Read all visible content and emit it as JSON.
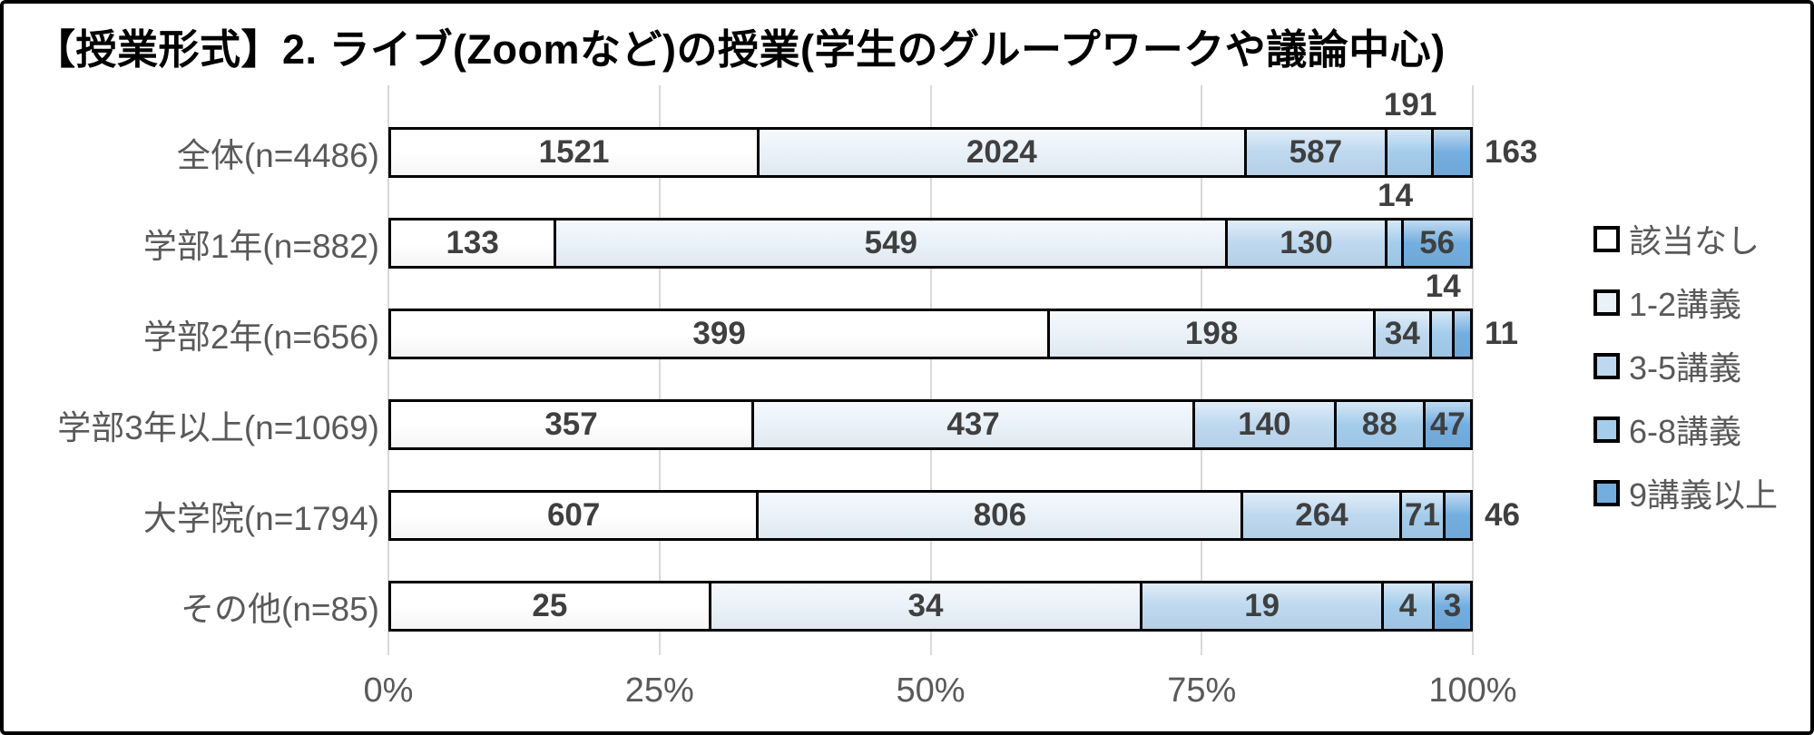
{
  "title": "【授業形式】2. ライブ(Zoomなど)の授業(学生のグループワークや議論中心)",
  "chart_data": {
    "type": "bar",
    "variant": "100pct-stacked-horizontal",
    "title": "【授業形式】2. ライブ(Zoomなど)の授業(学生のグループワークや議論中心)",
    "categories": [
      "全体(n=4486)",
      "学部1年(n=882)",
      "学部2年(n=656)",
      "学部3年以上(n=1069)",
      "大学院(n=1794)",
      "その他(n=85)"
    ],
    "category_totals": [
      4486,
      882,
      656,
      1069,
      1794,
      85
    ],
    "series": [
      {
        "name": "該当なし",
        "color": "#FFFFFF",
        "values": [
          1521,
          133,
          399,
          357,
          607,
          25
        ]
      },
      {
        "name": "1-2講義",
        "color": "#E9F1F9",
        "values": [
          2024,
          549,
          198,
          437,
          806,
          34
        ]
      },
      {
        "name": "3-5講義",
        "color": "#BDD8EF",
        "values": [
          587,
          130,
          34,
          140,
          264,
          19
        ]
      },
      {
        "name": "6-8講義",
        "color": "#A4CCEB",
        "values": [
          191,
          14,
          14,
          88,
          71,
          4
        ]
      },
      {
        "name": "9講義以上",
        "color": "#74AEDF",
        "values": [
          163,
          56,
          11,
          47,
          46,
          3
        ]
      }
    ],
    "label_positions": [
      [
        "in",
        "in",
        "in",
        "above",
        "right"
      ],
      [
        "in",
        "in",
        "in",
        "above",
        "in"
      ],
      [
        "in",
        "in",
        "in",
        "above",
        "right"
      ],
      [
        "in",
        "in",
        "in",
        "in",
        "in"
      ],
      [
        "in",
        "in",
        "in",
        "in",
        "right"
      ],
      [
        "in",
        "in",
        "in",
        "in",
        "in"
      ]
    ],
    "x_axis": {
      "ticks": [
        "0%",
        "25%",
        "50%",
        "75%",
        "100%"
      ],
      "range": [
        0,
        100
      ],
      "grid": true
    },
    "legend": {
      "position": "right",
      "entries": [
        "該当なし",
        "1-2講義",
        "3-5講義",
        "6-8講義",
        "9講義以上"
      ]
    }
  },
  "colors": {
    "grid": "#D9D9D9",
    "value_label": "#3F3F3F",
    "axis_text": "#595959",
    "segment_border": "#000000"
  }
}
